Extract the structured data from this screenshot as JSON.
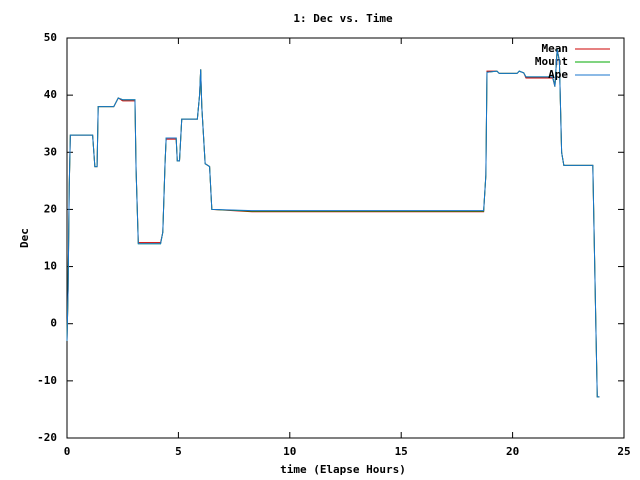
{
  "chart_data": {
    "type": "line",
    "title": "1: Dec vs. Time",
    "x_label": "time (Elapse Hours)",
    "y_label": "Dec",
    "x": [
      0,
      0.05,
      0.1,
      0.15,
      1.15,
      1.25,
      1.35,
      1.4,
      2.1,
      2.3,
      2.5,
      3.05,
      3.1,
      3.2,
      4.2,
      4.3,
      4.4,
      4.45,
      4.9,
      4.95,
      5.05,
      5.15,
      5.85,
      5.95,
      6.0,
      6.05,
      6.2,
      6.4,
      6.5,
      8.3,
      18.7,
      18.8,
      18.85,
      19.3,
      19.4,
      20.2,
      20.3,
      20.5,
      20.6,
      21.8,
      21.9,
      22.0,
      22.1,
      22.2,
      22.3,
      23.6,
      23.75,
      23.8,
      23.9
    ],
    "series": [
      {
        "name": "Mean",
        "color": "#cc0000",
        "values": [
          -3,
          6,
          24,
          33,
          33,
          27.5,
          27.5,
          38,
          38,
          39.5,
          39.0,
          39.0,
          27,
          14.2,
          14.2,
          16,
          28,
          32.3,
          32.3,
          28.5,
          28.5,
          35.8,
          35.8,
          40,
          44.5,
          38,
          28,
          27.5,
          20,
          19.6,
          19.6,
          26,
          44.2,
          44.2,
          43.8,
          43.8,
          44.2,
          43.9,
          43.0,
          43.0,
          41.5,
          48,
          46,
          30,
          27.7,
          27.7,
          -3,
          -12.8,
          -12.8
        ]
      },
      {
        "name": "Mount",
        "color": "#00aa00",
        "values": [
          -3,
          6,
          24,
          33,
          33,
          27.5,
          27.5,
          38,
          38,
          39.5,
          39.2,
          39.2,
          27,
          14,
          14,
          16,
          28,
          32.5,
          32.5,
          28.5,
          28.5,
          35.8,
          35.8,
          40,
          44.5,
          38,
          28,
          27.5,
          20,
          19.7,
          19.7,
          26,
          44,
          44.2,
          43.8,
          43.8,
          44.2,
          43.9,
          43.2,
          43.2,
          41.5,
          48,
          46,
          30,
          27.7,
          27.7,
          -3,
          -12.8,
          -12.8
        ]
      },
      {
        "name": "Ape",
        "color": "#1874cd",
        "values": [
          -3,
          6,
          24,
          33,
          33,
          27.5,
          27.5,
          38,
          38,
          39.5,
          39.2,
          39.2,
          27,
          14,
          14,
          16,
          28,
          32.5,
          32.5,
          28.5,
          28.5,
          35.8,
          35.8,
          40,
          44.5,
          38,
          28,
          27.5,
          20,
          19.8,
          19.8,
          26,
          44,
          44.2,
          43.8,
          43.8,
          44.2,
          43.9,
          43.2,
          43.2,
          41.5,
          48,
          46,
          30,
          27.7,
          27.7,
          -3,
          -12.8,
          -12.8
        ]
      }
    ],
    "xlim": [
      0,
      25
    ],
    "xticks": [
      0,
      5,
      10,
      15,
      20,
      25
    ],
    "ylim": [
      -20,
      50
    ],
    "yticks": [
      -20,
      -10,
      0,
      10,
      20,
      30,
      40,
      50
    ],
    "legend": "top-right"
  }
}
